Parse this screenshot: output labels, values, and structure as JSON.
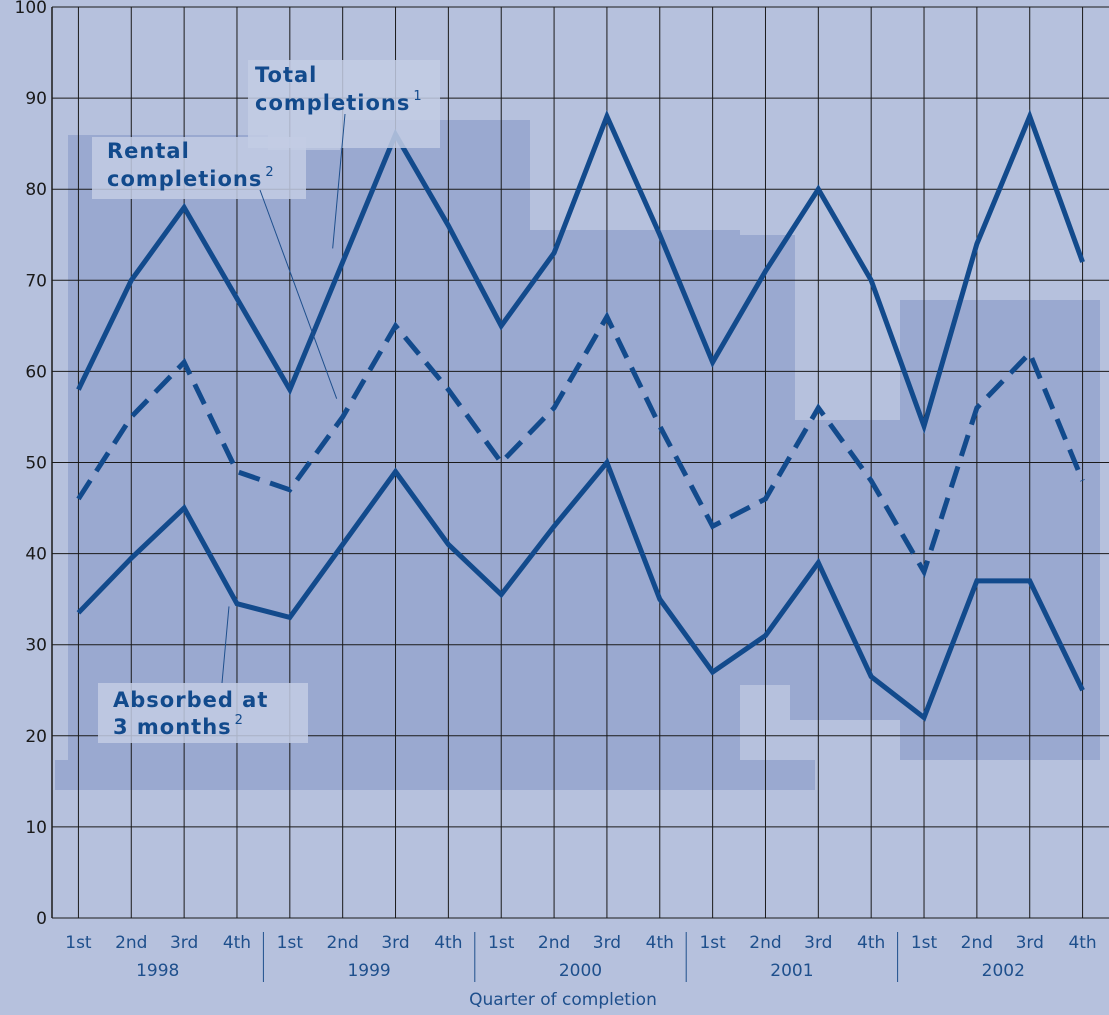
{
  "chart_data": {
    "type": "line",
    "title": "",
    "xlabel": "Quarter of completion",
    "ylabel": "",
    "ylim": [
      0,
      100
    ],
    "y_ticks": [
      0,
      10,
      20,
      30,
      40,
      50,
      60,
      70,
      80,
      90,
      100
    ],
    "grid": true,
    "quarter_labels": [
      "1st",
      "2nd",
      "3rd",
      "4th"
    ],
    "years": [
      "1998",
      "1999",
      "2000",
      "2001",
      "2002"
    ],
    "x": [
      "1998 Q1",
      "1998 Q2",
      "1998 Q3",
      "1998 Q4",
      "1999 Q1",
      "1999 Q2",
      "1999 Q3",
      "1999 Q4",
      "2000 Q1",
      "2000 Q2",
      "2000 Q3",
      "2000 Q4",
      "2001 Q1",
      "2001 Q2",
      "2001 Q3",
      "2001 Q4",
      "2002 Q1",
      "2002 Q2",
      "2002 Q3",
      "2002 Q4"
    ],
    "series": [
      {
        "name": "Total completions",
        "sup": "1",
        "style": "solid",
        "color": "#124a8c",
        "values": [
          58,
          70,
          78,
          68,
          58,
          72,
          86,
          76,
          65,
          73,
          88,
          75,
          61,
          71,
          80,
          70,
          54,
          74,
          88,
          72
        ]
      },
      {
        "name": "Rental completions",
        "sup": "2",
        "style": "dashed",
        "color": "#124a8c",
        "values": [
          46,
          55,
          61,
          49,
          47,
          55,
          65,
          58,
          50,
          56,
          66,
          54,
          43,
          46,
          56,
          48,
          38,
          56,
          62,
          48
        ]
      },
      {
        "name": "Absorbed at 3 months",
        "sup": "2",
        "style": "solid",
        "color": "#124a8c",
        "values": [
          33.5,
          39.5,
          45,
          34.5,
          33,
          41,
          49,
          41,
          35.5,
          43,
          50,
          35,
          27,
          31,
          39,
          26.5,
          22,
          37,
          37,
          25
        ]
      }
    ],
    "labels": [
      {
        "line1": "Total",
        "line2": "completions",
        "sup": "1"
      },
      {
        "line1": "Rental",
        "line2": "completions",
        "sup": "2"
      },
      {
        "line1": "Absorbed at",
        "line2": "3 months",
        "sup": "2"
      }
    ]
  }
}
